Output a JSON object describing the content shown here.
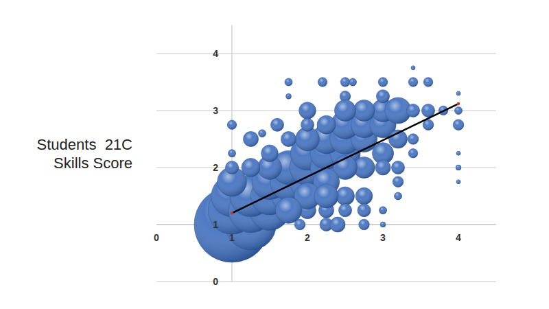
{
  "chart_data": {
    "type": "bubble",
    "ylabel": "Students  21C\nSkills Score",
    "color": "#3f6fbf",
    "grid": true,
    "xlim": [
      0,
      4.5
    ],
    "ylim": [
      0,
      4.5
    ],
    "xticks": [
      0,
      1,
      2,
      3,
      4
    ],
    "yticks": [
      0,
      1,
      2,
      3,
      4
    ],
    "axis_crossing": {
      "x": 1,
      "y": 1
    },
    "x": [
      1.0,
      1.25,
      1.0,
      1.0,
      1.25,
      1.5,
      1.25,
      1.0,
      1.5,
      1.75,
      1.5,
      1.75,
      2.0,
      1.75,
      2.0,
      2.0,
      2.25,
      2.25,
      2.5,
      2.25,
      2.5,
      2.75,
      2.5,
      2.75,
      3.0,
      3.0,
      3.2,
      2.75,
      2.0,
      1.5,
      1.25,
      1.0,
      1.0,
      1.0,
      1.5,
      1.75,
      2.0,
      2.25,
      2.5,
      2.5,
      3.0,
      3.0,
      3.4,
      3.6,
      3.4,
      3.8,
      4.0,
      4.0,
      3.6,
      3.4,
      3.0,
      3.0,
      2.75,
      2.5,
      2.25,
      2.5,
      2.75,
      2.75,
      2.75,
      3.0,
      2.5,
      2.25,
      2.0,
      2.0,
      1.75,
      2.25,
      3.2,
      3.2,
      3.2,
      3.4,
      3.4,
      3.2,
      4.0,
      4.0,
      4.0,
      4.0,
      1.75,
      1.75,
      2.2,
      2.6,
      1.6,
      1.25,
      1.4,
      3.6,
      2.5,
      2.0,
      3.0,
      1.9,
      2.25,
      2.4
    ],
    "values": [
      1.0,
      1.0,
      1.25,
      1.5,
      1.25,
      1.25,
      1.5,
      1.75,
      1.5,
      1.5,
      1.75,
      1.75,
      1.75,
      2.0,
      2.0,
      2.25,
      2.0,
      2.25,
      2.25,
      2.5,
      2.5,
      2.5,
      2.75,
      2.75,
      2.75,
      3.0,
      3.0,
      3.0,
      2.5,
      2.0,
      2.0,
      2.0,
      2.25,
      2.75,
      2.25,
      2.5,
      3.0,
      2.75,
      3.25,
      3.5,
      3.25,
      3.5,
      3.5,
      3.5,
      3.75,
      3.0,
      3.0,
      2.75,
      2.75,
      3.0,
      2.25,
      2.0,
      2.0,
      2.0,
      1.75,
      1.5,
      1.5,
      1.25,
      1.0,
      1.0,
      1.25,
      1.25,
      1.25,
      1.5,
      1.25,
      1.5,
      1.5,
      1.75,
      2.0,
      2.25,
      2.5,
      2.5,
      2.0,
      1.75,
      2.25,
      3.3,
      3.5,
      3.25,
      3.5,
      3.5,
      2.75,
      2.5,
      2.6,
      3.0,
      3.0,
      2.75,
      1.25,
      1.0,
      1.0,
      1.0
    ],
    "sizes": [
      100,
      45,
      40,
      30,
      35,
      28,
      30,
      15,
      25,
      20,
      22,
      24,
      22,
      20,
      22,
      20,
      18,
      18,
      16,
      15,
      16,
      12,
      14,
      12,
      12,
      9,
      12,
      8,
      10,
      10,
      6,
      3,
      1,
      1.5,
      5,
      4,
      5,
      6,
      2,
      1.5,
      3,
      1.5,
      1.5,
      1.5,
      0.3,
      1.5,
      1,
      2,
      2,
      3,
      8,
      4,
      8,
      10,
      12,
      6,
      5,
      3,
      2,
      0.5,
      3,
      4,
      5,
      12,
      12,
      10,
      1,
      2,
      3,
      1.5,
      2,
      6,
      0.5,
      0.3,
      0.3,
      0.3,
      1,
      0.5,
      1.5,
      1,
      3,
      4,
      1,
      3,
      8,
      3,
      1,
      2,
      3,
      4
    ],
    "trendline": {
      "x": [
        1,
        4
      ],
      "values": [
        1.2,
        3.12
      ],
      "color": "#000000"
    }
  }
}
